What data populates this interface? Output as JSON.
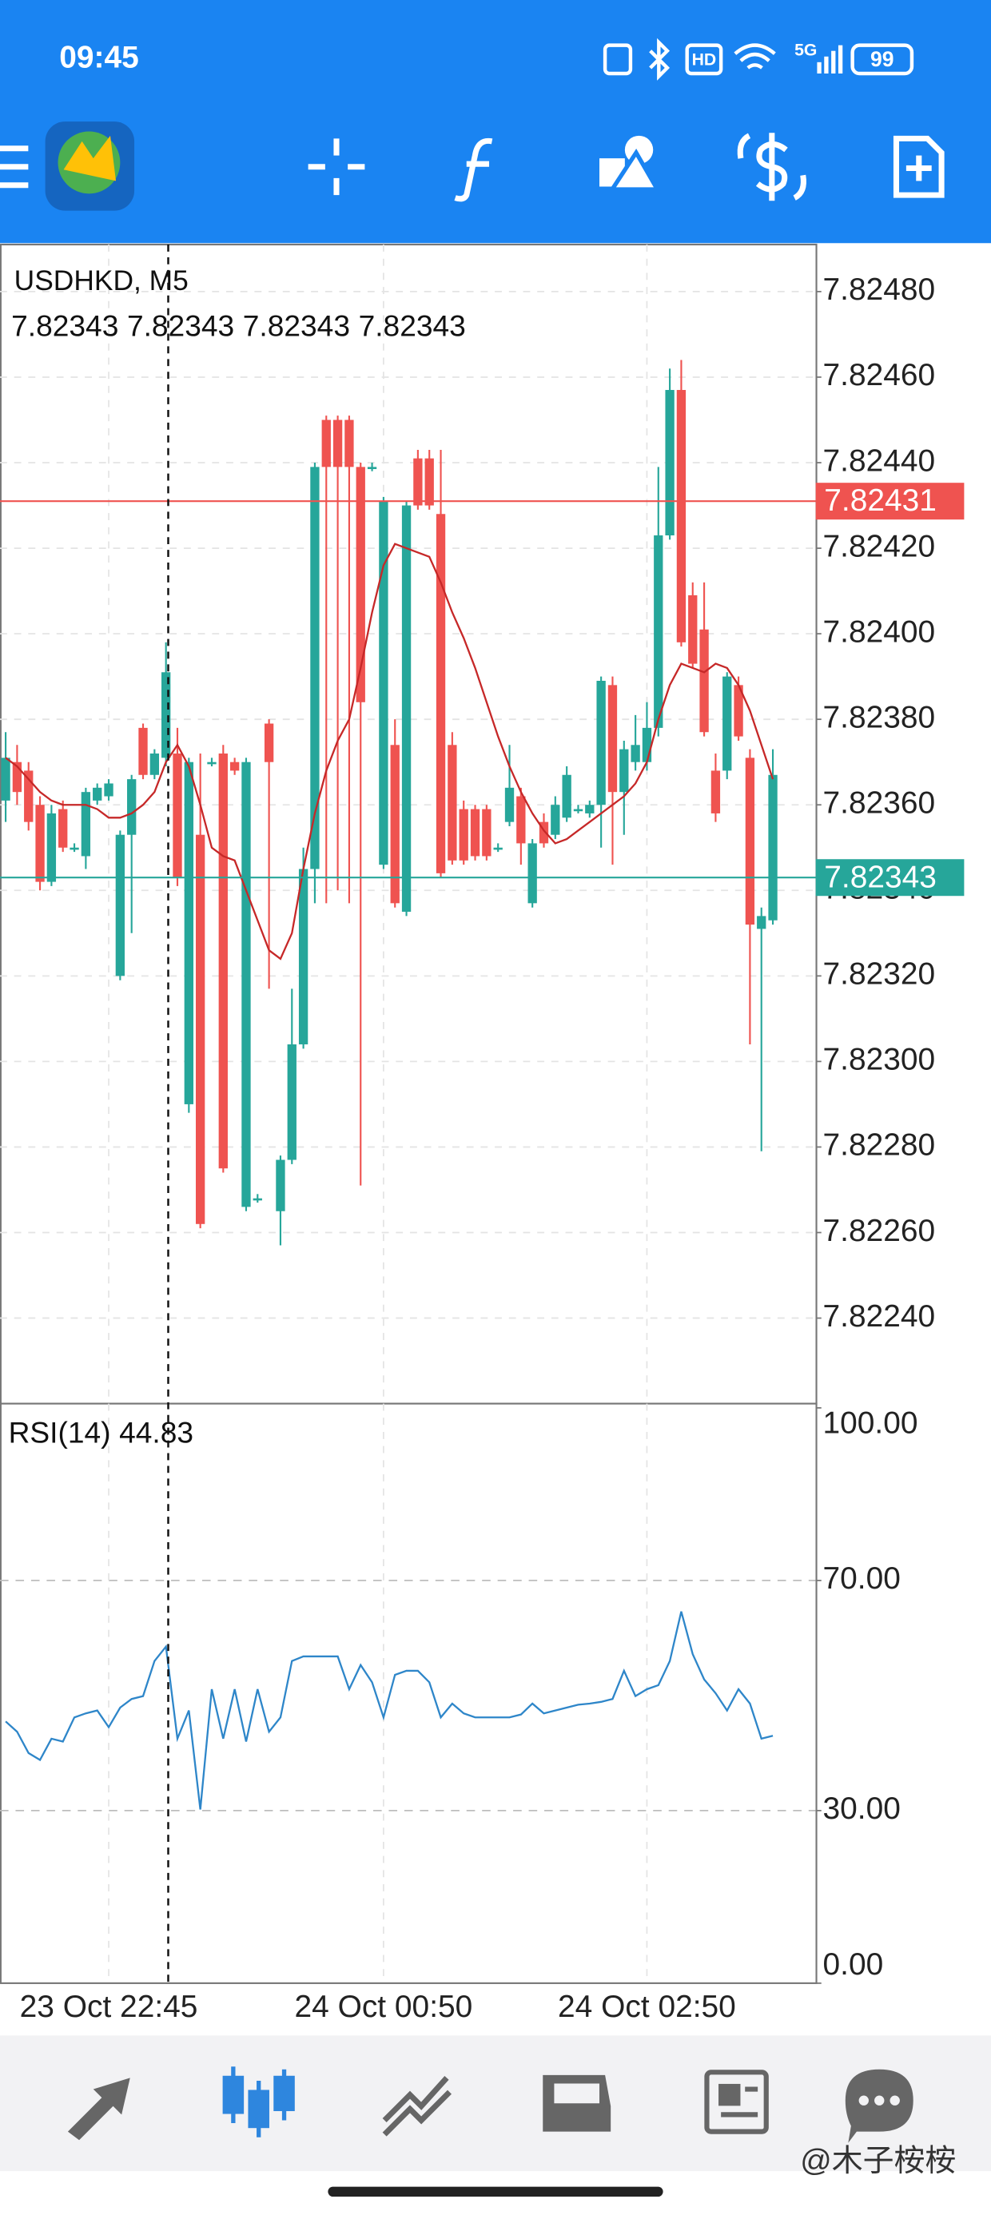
{
  "status_bar": {
    "time": "09:45",
    "hd": "HD",
    "network": "5G",
    "battery": 99
  },
  "watermark": "@木子桉桉",
  "chart_data": {
    "type": "candlestick",
    "title": "USDHKD, M5",
    "ohlc": [
      7.82343,
      7.82343,
      7.82343,
      7.82343
    ],
    "categories": [
      null,
      null,
      null,
      null,
      null,
      null,
      null,
      null,
      null,
      "23 Oct 22:45",
      null,
      null,
      null,
      null,
      null,
      null,
      null,
      null,
      null,
      null,
      null,
      null,
      null,
      null,
      null,
      null,
      null,
      null,
      null,
      null,
      null,
      null,
      null,
      "24 Oct 00:50",
      null,
      null,
      null,
      null,
      null,
      null,
      null,
      null,
      null,
      null,
      null,
      null,
      null,
      null,
      null,
      null,
      null,
      null,
      null,
      null,
      null,
      null,
      "24 Oct 02:50",
      null,
      null,
      null,
      null,
      null,
      null,
      null,
      null,
      null,
      null,
      null
    ],
    "open": [
      7.82361,
      7.8237,
      7.82368,
      7.8236,
      7.82342,
      7.82359,
      7.8235,
      7.82348,
      7.82361,
      7.82362,
      7.8232,
      7.82353,
      7.82378,
      7.82367,
      7.82371,
      7.82372,
      7.8229,
      7.82353,
      7.8237,
      7.82372,
      7.8237,
      7.82266,
      7.82268,
      7.82379,
      7.82265,
      7.82277,
      7.82304,
      7.82345,
      7.8245,
      7.8245,
      7.8245,
      7.82439,
      7.82439,
      7.82346,
      7.82374,
      7.82335,
      7.82441,
      7.82441,
      7.82428,
      7.82374,
      7.82359,
      7.82359,
      7.82359,
      7.8235,
      7.82356,
      7.82362,
      7.82337,
      7.82356,
      7.82353,
      7.82357,
      7.82359,
      7.82358,
      7.8236,
      7.82388,
      7.82363,
      7.8237,
      7.8237,
      7.82378,
      7.82423,
      7.82457,
      7.82409,
      7.82401,
      7.82368,
      7.82368,
      7.82388,
      7.82371,
      7.82331,
      7.82333
    ],
    "high": [
      7.82377,
      7.82374,
      7.8237,
      7.82362,
      7.8236,
      7.82361,
      7.82351,
      7.82364,
      7.82365,
      7.82366,
      7.82354,
      7.82367,
      7.82379,
      7.82373,
      7.82398,
      7.82378,
      7.82371,
      7.82372,
      7.82371,
      7.82374,
      7.82371,
      7.82371,
      7.82269,
      7.8238,
      7.82278,
      7.82317,
      7.8235,
      7.8244,
      7.82451,
      7.82451,
      7.82451,
      7.8244,
      7.8244,
      7.82432,
      7.8238,
      7.82431,
      7.82443,
      7.82443,
      7.82443,
      7.82377,
      7.82361,
      7.8236,
      7.8236,
      7.82351,
      7.82374,
      7.82364,
      7.82352,
      7.82358,
      7.82362,
      7.82369,
      7.8236,
      7.82361,
      7.8239,
      7.8239,
      7.82375,
      7.82381,
      7.82384,
      7.82439,
      7.82462,
      7.82464,
      7.82412,
      7.82412,
      7.82372,
      7.82391,
      7.8239,
      7.82373,
      7.82336,
      7.82373
    ],
    "low": [
      7.82356,
      7.8236,
      7.82354,
      7.8234,
      7.82341,
      7.82349,
      7.82349,
      7.82345,
      7.8236,
      7.82361,
      7.82319,
      7.8233,
      7.82366,
      7.82366,
      7.82369,
      7.82341,
      7.82288,
      7.82261,
      7.82369,
      7.82274,
      7.82367,
      7.82265,
      7.82267,
      7.82317,
      7.82257,
      7.82276,
      7.82303,
      7.82337,
      7.82337,
      7.8234,
      7.82337,
      7.82271,
      7.82438,
      7.82345,
      7.82336,
      7.82334,
      7.82429,
      7.82429,
      7.82343,
      7.82346,
      7.82346,
      7.82347,
      7.82347,
      7.82349,
      7.82355,
      7.82346,
      7.82336,
      7.8235,
      7.82352,
      7.82356,
      7.82358,
      7.82357,
      7.8235,
      7.82346,
      7.82353,
      7.82368,
      7.82368,
      7.82376,
      7.82422,
      7.82397,
      7.82392,
      7.82376,
      7.82356,
      7.82366,
      7.82375,
      7.82304,
      7.82279,
      7.82332
    ],
    "close": [
      7.82371,
      7.82363,
      7.82356,
      7.82342,
      7.82358,
      7.8235,
      7.8235,
      7.82363,
      7.82364,
      7.82365,
      7.82353,
      7.82366,
      7.82367,
      7.82372,
      7.82391,
      7.82343,
      7.8237,
      7.82262,
      7.8237,
      7.82275,
      7.82368,
      7.8237,
      7.82268,
      7.8237,
      7.82277,
      7.82304,
      7.82345,
      7.82439,
      7.82439,
      7.82439,
      7.82439,
      7.82384,
      7.82439,
      7.82431,
      7.82337,
      7.8243,
      7.8243,
      7.8243,
      7.82344,
      7.82347,
      7.82347,
      7.82348,
      7.82348,
      7.8235,
      7.82364,
      7.82351,
      7.82351,
      7.82351,
      7.8236,
      7.82367,
      7.82359,
      7.8236,
      7.82389,
      7.82363,
      7.82373,
      7.82374,
      7.82378,
      7.82423,
      7.82457,
      7.82398,
      7.82393,
      7.82377,
      7.82358,
      7.8239,
      7.82376,
      7.82332,
      7.82334,
      7.82367
    ],
    "up_color": "#26a69a",
    "down_color": "#ef5350",
    "ylim": [
      7.8222,
      7.82491
    ],
    "yticks": [
      {
        "value": 7.8224,
        "label": "7.82240"
      },
      {
        "value": 7.8226,
        "label": "7.82260"
      },
      {
        "value": 7.8228,
        "label": "7.82280"
      },
      {
        "value": 7.823,
        "label": "7.82300"
      },
      {
        "value": 7.8232,
        "label": "7.82320"
      },
      {
        "value": 7.8234,
        "label": "7.82340"
      },
      {
        "value": 7.8236,
        "label": "7.82360"
      },
      {
        "value": 7.8238,
        "label": "7.82380"
      },
      {
        "value": 7.824,
        "label": "7.82400"
      },
      {
        "value": 7.8242,
        "label": "7.82420"
      },
      {
        "value": 7.8244,
        "label": "7.82440"
      },
      {
        "value": 7.8246,
        "label": "7.82460"
      },
      {
        "value": 7.8248,
        "label": "7.82480"
      }
    ],
    "grid": true,
    "bid": 7.82343,
    "bid_color": "#26a69a",
    "ask": 7.82431,
    "ask_color": "#ef5350",
    "ma": {
      "color": "#c62828",
      "values": [
        7.82371,
        7.82369,
        7.82366,
        7.82363,
        7.82361,
        7.8236,
        7.8236,
        7.8236,
        7.82359,
        7.82357,
        7.82357,
        7.82358,
        7.8236,
        7.82363,
        7.8237,
        7.82374,
        7.82369,
        7.8236,
        7.8235,
        7.82348,
        7.82347,
        7.8234,
        7.82333,
        7.82326,
        7.82324,
        7.8233,
        7.82345,
        7.82358,
        7.82368,
        7.82375,
        7.8238,
        7.82392,
        7.82405,
        7.82416,
        7.82421,
        7.8242,
        7.82419,
        7.82418,
        7.82412,
        7.82405,
        7.82399,
        7.82392,
        7.82384,
        7.82376,
        7.82369,
        7.82363,
        7.82358,
        7.82354,
        7.82351,
        7.82352,
        7.82354,
        7.82356,
        7.82358,
        7.8236,
        7.82362,
        7.82365,
        7.8237,
        7.8238,
        7.82388,
        7.82393,
        7.82392,
        7.82391,
        7.82393,
        7.82392,
        7.82388,
        7.82382,
        7.82374,
        7.82366
      ]
    },
    "rsi": {
      "title": "RSI(14)",
      "current": 44.83,
      "color": "#2e86c9",
      "ylim": [
        0,
        100
      ],
      "yticks": [
        {
          "value": 0,
          "label": "0.00"
        },
        {
          "value": 30,
          "label": "30.00"
        },
        {
          "value": 70,
          "label": "70.00"
        },
        {
          "value": 100,
          "label": "100.00"
        }
      ],
      "values": [
        45.5,
        43.7,
        40,
        38.8,
        42.5,
        42,
        46.2,
        46.9,
        47.4,
        44.5,
        47.9,
        49.4,
        49.9,
        56,
        58.5,
        42.5,
        47.4,
        30.2,
        51.1,
        42.5,
        51.1,
        42,
        51.1,
        43.7,
        46.2,
        56,
        56.8,
        56.8,
        56.8,
        56.8,
        51.1,
        55.3,
        52.3,
        46.2,
        53.6,
        54.3,
        54.3,
        52.3,
        46.2,
        48.6,
        46.9,
        46.2,
        46.2,
        46.2,
        46.2,
        46.7,
        48.6,
        46.9,
        47.4,
        47.9,
        48.4,
        48.6,
        48.9,
        49.4,
        54.3,
        49.9,
        51.1,
        51.8,
        56,
        64.6,
        57.2,
        52.8,
        50.4,
        47.4,
        51.1,
        48.6,
        42.5,
        43
      ]
    }
  }
}
